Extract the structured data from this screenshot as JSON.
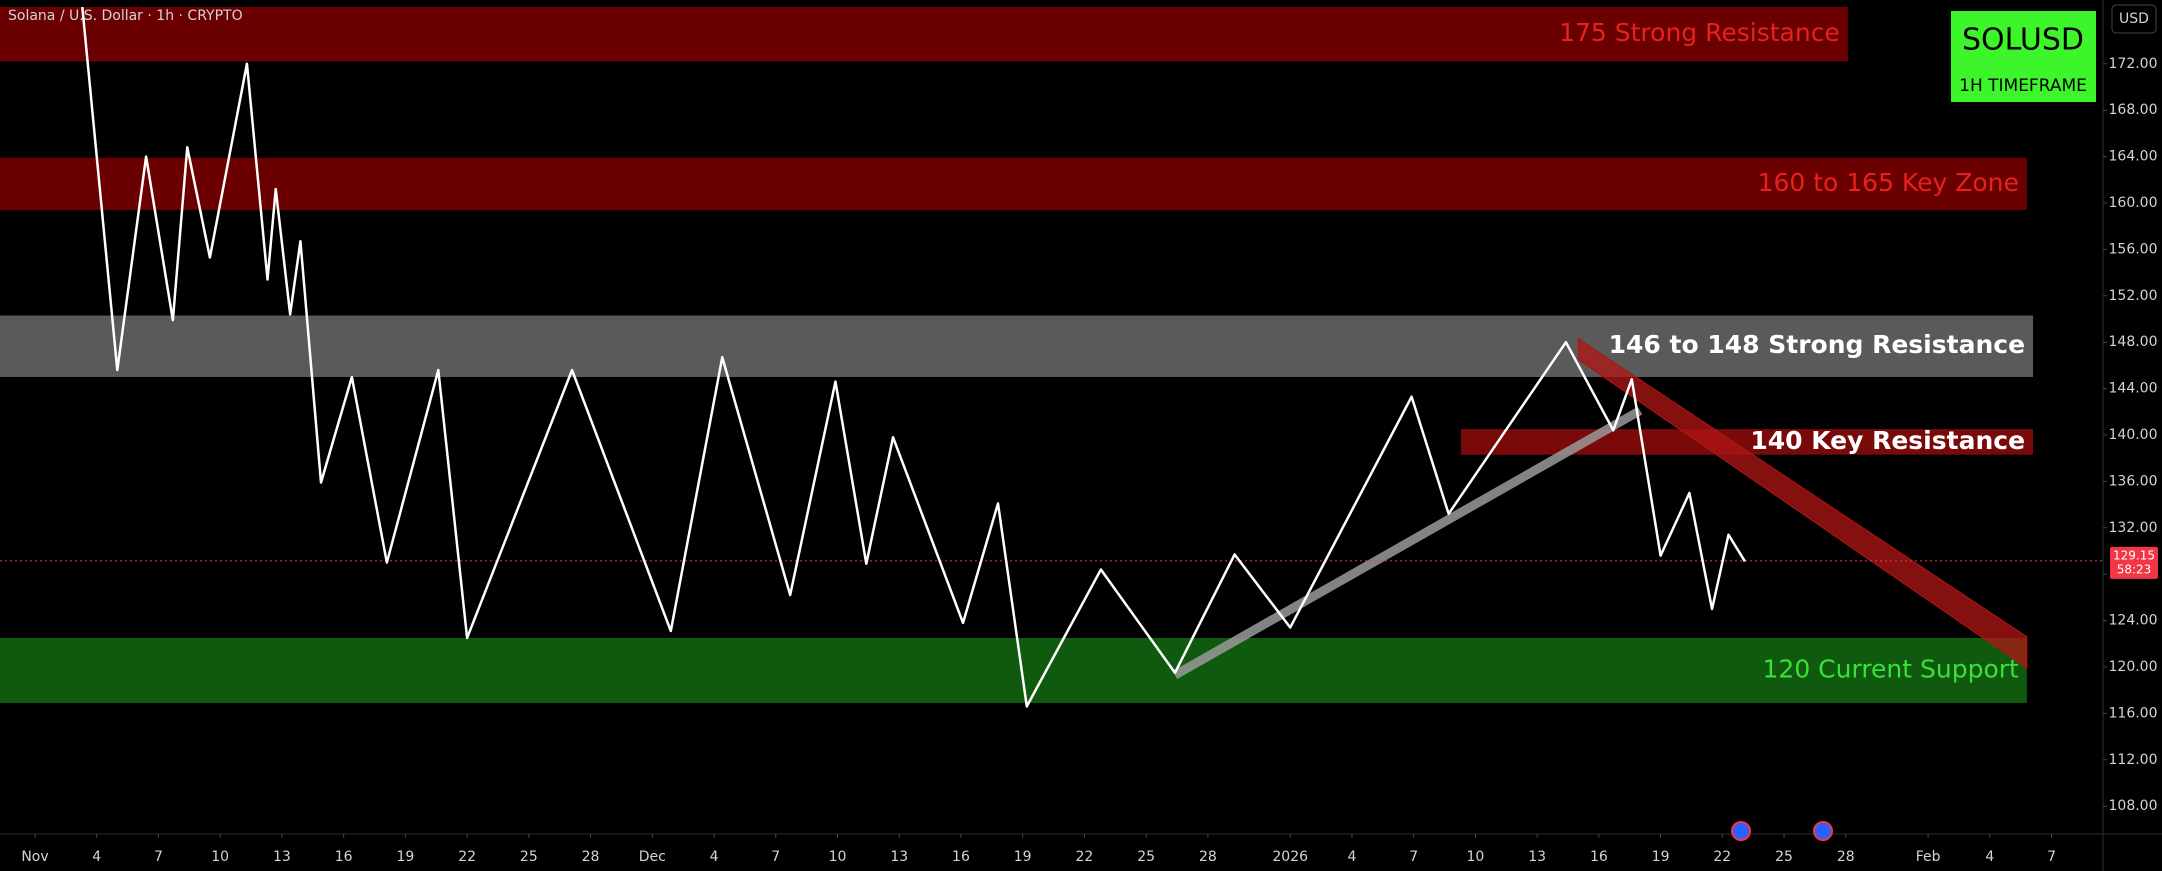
{
  "chart_data": {
    "type": "line",
    "title": "Solana / U.S. Dollar · 1h · CRYPTO",
    "symbol": "SOLUSD",
    "timeframe": "1H TIMEFRAME",
    "currency": "USD",
    "last_price": 129.15,
    "countdown": "58:23",
    "last_price_color": "#f23645",
    "xlim": [
      -1.7,
      100.5
    ],
    "ylim": [
      105.6,
      177.5
    ],
    "xticks": [
      {
        "value": 0,
        "label": "Nov"
      },
      {
        "value": 3,
        "label": "4"
      },
      {
        "value": 6,
        "label": "7"
      },
      {
        "value": 9,
        "label": "10"
      },
      {
        "value": 12,
        "label": "13"
      },
      {
        "value": 15,
        "label": "16"
      },
      {
        "value": 18,
        "label": "19"
      },
      {
        "value": 21,
        "label": "22"
      },
      {
        "value": 24,
        "label": "25"
      },
      {
        "value": 27,
        "label": "28"
      },
      {
        "value": 30,
        "label": "Dec"
      },
      {
        "value": 33,
        "label": "4"
      },
      {
        "value": 36,
        "label": "7"
      },
      {
        "value": 39,
        "label": "10"
      },
      {
        "value": 42,
        "label": "13"
      },
      {
        "value": 45,
        "label": "16"
      },
      {
        "value": 48,
        "label": "19"
      },
      {
        "value": 51,
        "label": "22"
      },
      {
        "value": 54,
        "label": "25"
      },
      {
        "value": 57,
        "label": "28"
      },
      {
        "value": 61,
        "label": "2026"
      },
      {
        "value": 64,
        "label": "4"
      },
      {
        "value": 67,
        "label": "7"
      },
      {
        "value": 70,
        "label": "10"
      },
      {
        "value": 73,
        "label": "13"
      },
      {
        "value": 76,
        "label": "16"
      },
      {
        "value": 79,
        "label": "19"
      },
      {
        "value": 82,
        "label": "22"
      },
      {
        "value": 85,
        "label": "25"
      },
      {
        "value": 88,
        "label": "28"
      },
      {
        "value": 92,
        "label": "Feb"
      },
      {
        "value": 95,
        "label": "4"
      },
      {
        "value": 98,
        "label": "7"
      }
    ],
    "yticks": [
      {
        "value": 108,
        "label": "108.00"
      },
      {
        "value": 112,
        "label": "112.00"
      },
      {
        "value": 116,
        "label": "116.00"
      },
      {
        "value": 120,
        "label": "120.00"
      },
      {
        "value": 124,
        "label": "124.00"
      },
      {
        "value": 128,
        "label": "128.00"
      },
      {
        "value": 132,
        "label": "132.00"
      },
      {
        "value": 136,
        "label": "136.00"
      },
      {
        "value": 140,
        "label": "140.00"
      },
      {
        "value": 144,
        "label": "144.00"
      },
      {
        "value": 148,
        "label": "148.00"
      },
      {
        "value": 152,
        "label": "152.00"
      },
      {
        "value": 156,
        "label": "156.00"
      },
      {
        "value": 160,
        "label": "160.00"
      },
      {
        "value": 164,
        "label": "164.00"
      },
      {
        "value": 168,
        "label": "168.00"
      },
      {
        "value": 172,
        "label": "172.00"
      }
    ],
    "zones": [
      {
        "label": "175 Strong Resistance",
        "low": 172.2,
        "high": 176.9,
        "start": -1.7,
        "end": 88.1,
        "color": "#6b0000",
        "label_color": "#e8211c"
      },
      {
        "label": "160 to 165 Key Zone",
        "low": 159.4,
        "high": 163.9,
        "start": -1.7,
        "end": 96.8,
        "color": "#6b0000",
        "label_color": "#e8211c"
      },
      {
        "label": "146 to 148 Strong Resistance",
        "low": 145.0,
        "high": 150.3,
        "start": -1.7,
        "end": 97.1,
        "color": "#5a5a5a",
        "label_color": "#ffffff"
      },
      {
        "label": "140 Key Resistance",
        "low": 138.3,
        "high": 140.5,
        "start": 69.3,
        "end": 97.1,
        "color": "#7a0a0a",
        "label_color": "#ffffff"
      },
      {
        "label": "120 Current Support",
        "low": 116.9,
        "high": 122.5,
        "start": -1.7,
        "end": 96.8,
        "color": "#0f5a0f",
        "label_color": "#39e13a"
      }
    ],
    "x": [
      2.3,
      4.0,
      5.4,
      6.7,
      7.4,
      8.5,
      10.3,
      11.3,
      11.7,
      12.4,
      12.9,
      13.9,
      15.4,
      17.1,
      19.6,
      21.0,
      26.1,
      30.9,
      33.4,
      36.7,
      38.9,
      40.4,
      41.7,
      45.1,
      46.8,
      48.2,
      51.8,
      55.4,
      58.3,
      61.0,
      66.9,
      68.7,
      74.4,
      76.7,
      77.6,
      79.0,
      80.4,
      81.5,
      82.3,
      83.1
    ],
    "series": [
      {
        "color": "#ffffff",
        "values": [
          176.9,
          145.6,
          164.0,
          149.9,
          164.8,
          155.3,
          172.0,
          153.4,
          161.2,
          150.4,
          156.7,
          135.9,
          145.0,
          129.0,
          145.6,
          122.5,
          145.6,
          123.1,
          146.7,
          126.2,
          144.6,
          128.9,
          139.8,
          123.8,
          134.1,
          116.6,
          128.4,
          119.5,
          129.7,
          123.4,
          143.3,
          133.2,
          148.0,
          140.4,
          144.8,
          129.6,
          135.0,
          125.0,
          131.4,
          129.1
        ]
      }
    ],
    "trendlines": [
      {
        "x": [
          55.4,
          78.0
        ],
        "y": [
          119.3,
          142.1
        ],
        "color": "#9a9a9a"
      }
    ],
    "channel": {
      "x": [
        75.0,
        96.8
      ],
      "upper": [
        148.3,
        122.6
      ],
      "lower": [
        146.5,
        119.9
      ],
      "color": "#b01515"
    }
  }
}
